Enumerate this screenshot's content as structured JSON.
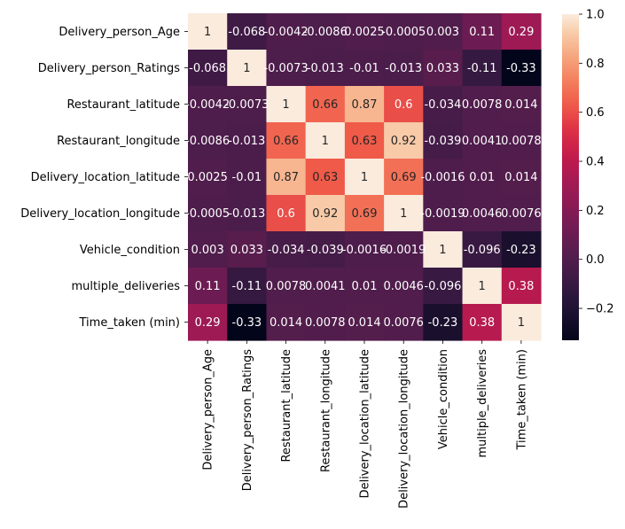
{
  "chart_data": {
    "type": "heatmap",
    "title": "",
    "xlabel": "",
    "ylabel": "",
    "row_labels": [
      "Delivery_person_Age",
      "Delivery_person_Ratings",
      "Restaurant_latitude",
      "Restaurant_longitude",
      "Delivery_location_latitude",
      "Delivery_location_longitude",
      "Vehicle_condition",
      "multiple_deliveries",
      "Time_taken (min)"
    ],
    "col_labels": [
      "Delivery_person_Age",
      "Delivery_person_Ratings",
      "Restaurant_latitude",
      "Restaurant_longitude",
      "Delivery_location_latitude",
      "Delivery_location_longitude",
      "Vehicle_condition",
      "multiple_deliveries",
      "Time_taken (min)"
    ],
    "values": [
      [
        1,
        -0.068,
        -0.0042,
        -0.0086,
        0.0025,
        -0.0005,
        0.003,
        0.11,
        0.29
      ],
      [
        -0.068,
        1,
        -0.0073,
        -0.013,
        -0.01,
        -0.013,
        0.033,
        -0.11,
        -0.33
      ],
      [
        -0.0042,
        -0.0073,
        1,
        0.66,
        0.87,
        0.6,
        -0.034,
        0.0078,
        0.014
      ],
      [
        -0.0086,
        -0.013,
        0.66,
        1,
        0.63,
        0.92,
        -0.039,
        0.0041,
        0.0078
      ],
      [
        0.0025,
        -0.01,
        0.87,
        0.63,
        1,
        0.69,
        -0.0016,
        0.01,
        0.014
      ],
      [
        -0.0005,
        -0.013,
        0.6,
        0.92,
        0.69,
        1,
        -0.0019,
        0.0046,
        0.0076
      ],
      [
        0.003,
        0.033,
        -0.034,
        -0.039,
        -0.0016,
        -0.0019,
        1,
        -0.096,
        -0.23
      ],
      [
        0.11,
        -0.11,
        0.0078,
        0.0041,
        0.01,
        0.0046,
        -0.096,
        1,
        0.38
      ],
      [
        0.29,
        -0.33,
        0.014,
        0.0078,
        0.014,
        0.0076,
        -0.23,
        0.38,
        1
      ]
    ],
    "cell_labels": [
      [
        "1",
        "-0.068",
        "-0.0042",
        "-0.0086",
        "0.0025",
        "-0.0005",
        "0.003",
        "0.11",
        "0.29"
      ],
      [
        "-0.068",
        "1",
        "-0.0073",
        "-0.013",
        "-0.01",
        "-0.013",
        "0.033",
        "-0.11",
        "-0.33"
      ],
      [
        "-0.0042",
        "-0.0073",
        "1",
        "0.66",
        "0.87",
        "0.6",
        "-0.034",
        "0.0078",
        "0.014"
      ],
      [
        "-0.0086",
        "-0.013",
        "0.66",
        "1",
        "0.63",
        "0.92",
        "-0.039",
        "0.0041",
        "0.0078"
      ],
      [
        "0.0025",
        "-0.01",
        "0.87",
        "0.63",
        "1",
        "0.69",
        "-0.0016",
        "0.01",
        "0.014"
      ],
      [
        "-0.0005",
        "-0.013",
        "0.6",
        "0.92",
        "0.69",
        "1",
        "-0.0019",
        "0.0046",
        "0.0076"
      ],
      [
        "0.003",
        "0.033",
        "-0.034",
        "-0.039",
        "-0.0016",
        "-0.0019",
        "1",
        "-0.096",
        "-0.23"
      ],
      [
        "0.11",
        "-0.11",
        "0.0078",
        "0.0041",
        "0.01",
        "0.0046",
        "-0.096",
        "1",
        "0.38"
      ],
      [
        "0.29",
        "-0.33",
        "0.014",
        "0.0078",
        "0.014",
        "0.0076",
        "-0.23",
        "0.38",
        "1"
      ]
    ],
    "colormap": "rocket",
    "vmin": -0.33,
    "vmax": 1.0,
    "colorbar": {
      "ticks": [
        -0.2,
        0.0,
        0.2,
        0.4,
        0.6,
        0.8,
        1.0
      ],
      "tick_labels": [
        "−0.2",
        "0.0",
        "0.2",
        "0.4",
        "0.6",
        "0.8",
        "1.0"
      ],
      "placement": "right"
    }
  }
}
